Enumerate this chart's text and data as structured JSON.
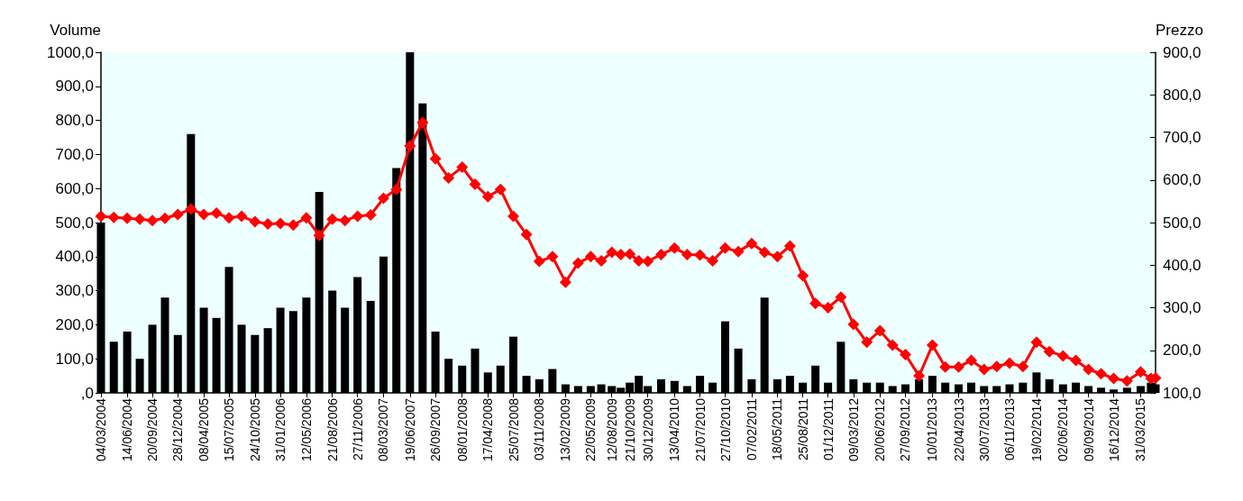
{
  "chart_data": {
    "type": "bar",
    "ylabel": "Volume",
    "y2label": "Prezzo",
    "x": [
      "2004-03-04",
      "2004-04-23",
      "2004-06-14",
      "2004-08-02",
      "2004-09-20",
      "2004-11-08",
      "2004-12-28",
      "2005-02-17",
      "2005-04-08",
      "2005-05-27",
      "2005-07-15",
      "2005-09-02",
      "2005-10-24",
      "2005-12-13",
      "2006-01-31",
      "2006-03-22",
      "2006-05-12",
      "2006-07-01",
      "2006-08-21",
      "2006-10-09",
      "2006-11-27",
      "2007-01-17",
      "2007-03-08",
      "2007-04-27",
      "2007-06-19",
      "2007-08-07",
      "2007-09-26",
      "2007-11-16",
      "2008-01-08",
      "2008-02-27",
      "2008-04-17",
      "2008-06-05",
      "2008-07-25",
      "2008-09-14",
      "2008-11-03",
      "2008-12-24",
      "2009-02-13",
      "2009-04-03",
      "2009-05-22",
      "2009-07-02",
      "2009-08-12",
      "2009-09-16",
      "2009-10-21",
      "2009-11-25",
      "2009-12-30",
      "2010-02-20",
      "2010-04-13",
      "2010-06-01",
      "2010-07-21",
      "2010-09-08",
      "2010-10-27",
      "2010-12-17",
      "2011-02-07",
      "2011-03-29",
      "2011-05-18",
      "2011-07-06",
      "2011-08-25",
      "2011-10-13",
      "2011-12-01",
      "2012-01-20",
      "2012-03-09",
      "2012-04-30",
      "2012-06-20",
      "2012-08-08",
      "2012-09-27",
      "2012-11-19",
      "2013-01-10",
      "2013-03-01",
      "2013-04-22",
      "2013-06-10",
      "2013-07-30",
      "2013-09-17",
      "2013-11-06",
      "2013-12-28",
      "2014-02-19",
      "2014-04-10",
      "2014-06-02",
      "2014-07-22",
      "2014-09-09",
      "2014-10-28",
      "2014-12-16",
      "2015-02-06",
      "2015-03-31",
      "2015-05-10",
      "2015-05-28"
    ],
    "series": [
      {
        "color": "#000000",
        "values": [
          500,
          150,
          180,
          100,
          200,
          280,
          170,
          760,
          250,
          220,
          370,
          200,
          170,
          190,
          250,
          240,
          280,
          590,
          300,
          250,
          340,
          270,
          400,
          660,
          1000,
          850,
          180,
          100,
          80,
          130,
          60,
          80,
          165,
          50,
          40,
          70,
          25,
          20,
          20,
          25,
          20,
          15,
          30,
          50,
          20,
          40,
          35,
          20,
          50,
          30,
          210,
          130,
          40,
          280,
          40,
          50,
          30,
          80,
          30,
          150,
          40,
          30,
          30,
          20,
          25,
          40,
          50,
          30,
          25,
          30,
          20,
          20,
          25,
          30,
          60,
          40,
          25,
          30,
          20,
          15,
          10,
          15,
          20,
          30,
          25
        ]
      },
      {
        "type": "line",
        "axis": "y2",
        "color": "#ff0000",
        "values": [
          515,
          512,
          510,
          508,
          505,
          510,
          519,
          532,
          519,
          522,
          511,
          515,
          502,
          497,
          498,
          494,
          511,
          470,
          508,
          505,
          515,
          518,
          557,
          578,
          680,
          735,
          650,
          605,
          630,
          590,
          561,
          578,
          515,
          472,
          409,
          420,
          360,
          405,
          420,
          410,
          430,
          425,
          426,
          410,
          409,
          425,
          440,
          425,
          424,
          410,
          440,
          432,
          451,
          430,
          420,
          445,
          375,
          310,
          300,
          325,
          261,
          219,
          246,
          212,
          190,
          140,
          212,
          161,
          161,
          176,
          155,
          162,
          170,
          162,
          219,
          197,
          187,
          176,
          155,
          145,
          134,
          128,
          149,
          134,
          135
        ]
      }
    ],
    "marker": "diamond",
    "line_style": "solid",
    "xlim": [
      "2004-03-04",
      "2015-05-28"
    ],
    "xticks": [
      {
        "value": "2004-03-04",
        "label": "04/03/2004"
      },
      {
        "value": "2004-06-14",
        "label": "14/06/2004"
      },
      {
        "value": "2004-09-20",
        "label": "20/09/2004"
      },
      {
        "value": "2004-12-28",
        "label": "28/12/2004"
      },
      {
        "value": "2005-04-08",
        "label": "08/04/2005"
      },
      {
        "value": "2005-07-15",
        "label": "15/07/2005"
      },
      {
        "value": "2005-10-24",
        "label": "24/10/2005"
      },
      {
        "value": "2006-01-31",
        "label": "31/01/2006"
      },
      {
        "value": "2006-05-12",
        "label": "12/05/2006"
      },
      {
        "value": "2006-08-21",
        "label": "21/08/2006"
      },
      {
        "value": "2006-11-27",
        "label": "27/11/2006"
      },
      {
        "value": "2007-03-08",
        "label": "08/03/2007"
      },
      {
        "value": "2007-06-19",
        "label": "19/06/2007"
      },
      {
        "value": "2007-09-26",
        "label": "26/09/2007"
      },
      {
        "value": "2008-01-08",
        "label": "08/01/2008"
      },
      {
        "value": "2008-04-17",
        "label": "17/04/2008"
      },
      {
        "value": "2008-07-25",
        "label": "25/07/2008"
      },
      {
        "value": "2008-11-03",
        "label": "03/11/2008"
      },
      {
        "value": "2009-02-13",
        "label": "13/02/2009"
      },
      {
        "value": "2009-05-22",
        "label": "22/05/2009"
      },
      {
        "value": "2009-08-12",
        "label": "12/08/2009"
      },
      {
        "value": "2009-10-21",
        "label": "21/10/2009"
      },
      {
        "value": "2009-12-30",
        "label": "30/12/2009"
      },
      {
        "value": "2010-04-13",
        "label": "13/04/2010"
      },
      {
        "value": "2010-07-21",
        "label": "21/07/2010"
      },
      {
        "value": "2010-10-27",
        "label": "27/10/2010"
      },
      {
        "value": "2011-02-07",
        "label": "07/02/2011"
      },
      {
        "value": "2011-05-18",
        "label": "18/05/2011"
      },
      {
        "value": "2011-08-25",
        "label": "25/08/2011"
      },
      {
        "value": "2011-12-01",
        "label": "01/12/2011"
      },
      {
        "value": "2012-03-09",
        "label": "09/03/2012"
      },
      {
        "value": "2012-06-20",
        "label": "20/06/2012"
      },
      {
        "value": "2012-09-27",
        "label": "27/09/2012"
      },
      {
        "value": "2013-01-10",
        "label": "10/01/2013"
      },
      {
        "value": "2013-04-22",
        "label": "22/04/2013"
      },
      {
        "value": "2013-07-30",
        "label": "30/07/2013"
      },
      {
        "value": "2013-11-06",
        "label": "06/11/2013"
      },
      {
        "value": "2014-02-19",
        "label": "19/02/2014"
      },
      {
        "value": "2014-06-02",
        "label": "02/06/2014"
      },
      {
        "value": "2014-09-09",
        "label": "09/09/2014"
      },
      {
        "value": "2014-12-16",
        "label": "16/12/2014"
      },
      {
        "value": "2015-03-31",
        "label": "31/03/2015"
      }
    ],
    "ylim": [
      0,
      1000
    ],
    "yticks": [
      {
        "value": 0,
        "label": ",0"
      },
      {
        "value": 100,
        "label": "100,0"
      },
      {
        "value": 200,
        "label": "200,0"
      },
      {
        "value": 300,
        "label": "300,0"
      },
      {
        "value": 400,
        "label": "400,0"
      },
      {
        "value": 500,
        "label": "500,0"
      },
      {
        "value": 600,
        "label": "600,0"
      },
      {
        "value": 700,
        "label": "700,0"
      },
      {
        "value": 800,
        "label": "800,0"
      },
      {
        "value": 900,
        "label": "900,0"
      },
      {
        "value": 1000,
        "label": "1000,0"
      }
    ],
    "y2lim": [
      100,
      900
    ],
    "y2ticks": [
      {
        "value": 100,
        "label": "100,0"
      },
      {
        "value": 200,
        "label": "200,0"
      },
      {
        "value": 300,
        "label": "300,0"
      },
      {
        "value": 400,
        "label": "400,0"
      },
      {
        "value": 500,
        "label": "500,0"
      },
      {
        "value": 600,
        "label": "600,0"
      },
      {
        "value": 700,
        "label": "700,0"
      },
      {
        "value": 800,
        "label": "800,0"
      },
      {
        "value": 900,
        "label": "900,0"
      }
    ],
    "grid": false
  }
}
